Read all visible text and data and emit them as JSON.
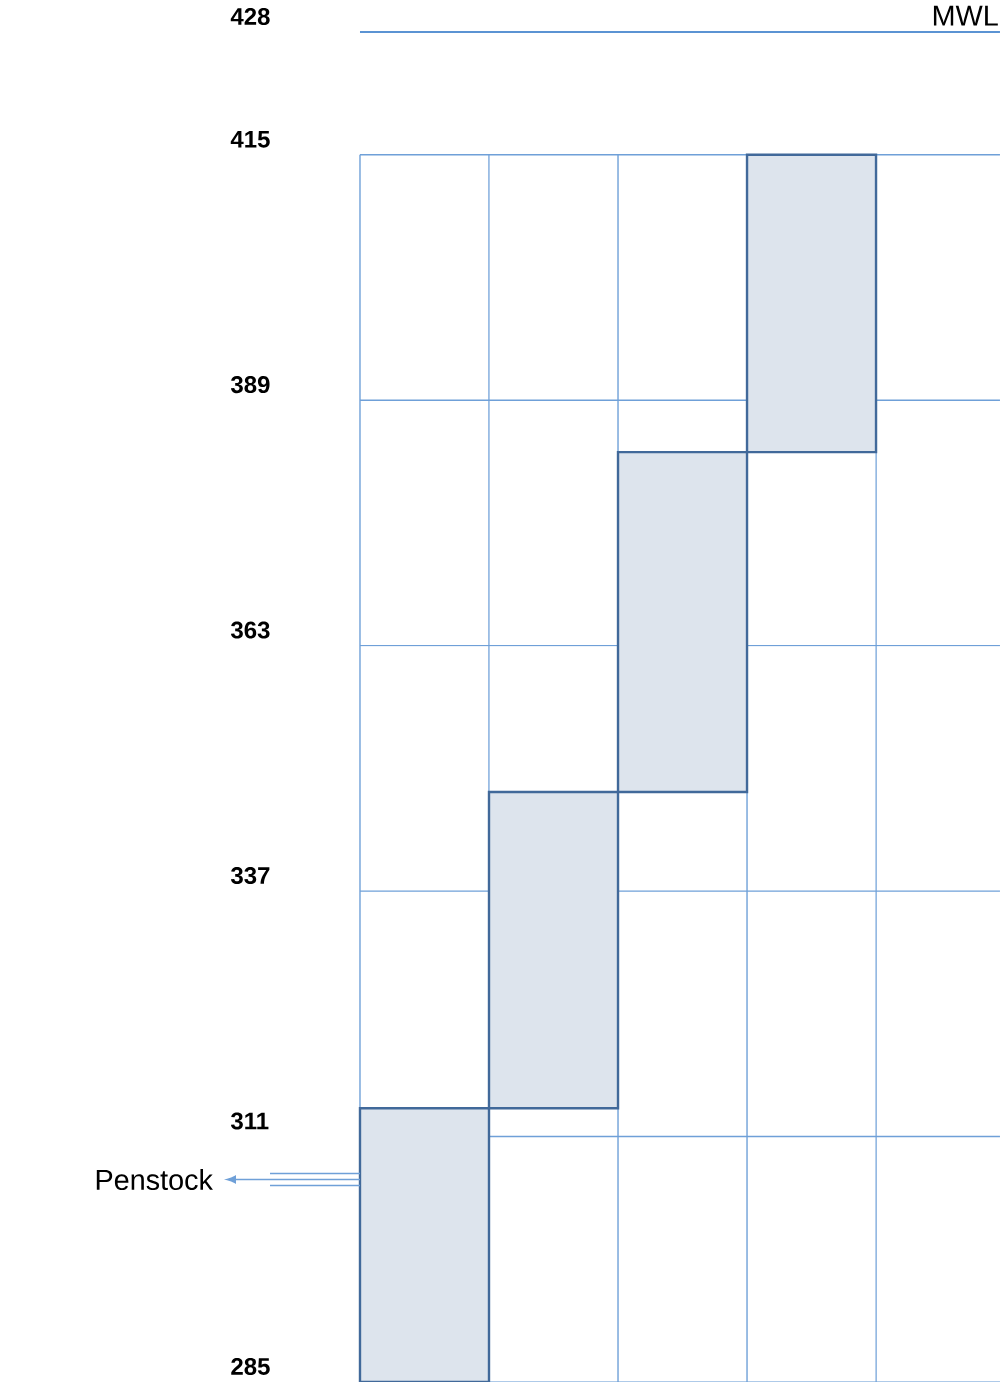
{
  "chart_data": {
    "type": "bar",
    "categories": [
      null,
      null,
      null,
      null,
      null
    ],
    "values": [
      29,
      33.5,
      36,
      31.5,
      null
    ],
    "base": [
      285,
      314,
      347.5,
      383.5,
      null
    ],
    "color": "#41699a",
    "ylim": [
      285,
      428
    ],
    "yticks": [
      285,
      311,
      337,
      363,
      389,
      415,
      428
    ],
    "grid": true,
    "ref_lines": [
      {
        "axis": "y",
        "value": 428,
        "label": "MWL",
        "color": "#5b93d3"
      }
    ],
    "annotations": [
      "Penstock"
    ]
  }
}
